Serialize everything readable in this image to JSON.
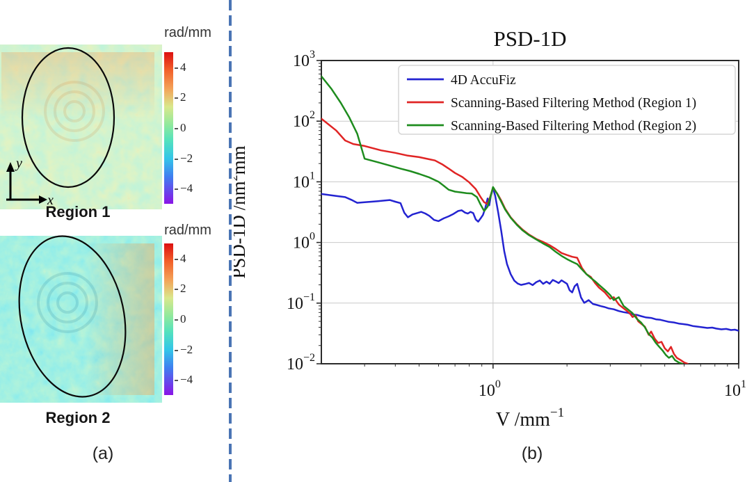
{
  "panel_a": {
    "caption": "(a)",
    "colorbar": {
      "label": "rad/mm",
      "ticks": [
        "4",
        "2",
        "0",
        "−2",
        "−4"
      ],
      "range": [
        -5,
        5
      ],
      "gradient": [
        [
          "0%",
          "#dc1010"
        ],
        [
          "12%",
          "#f2612a"
        ],
        [
          "24%",
          "#f3a258"
        ],
        [
          "36%",
          "#d9e88c"
        ],
        [
          "48%",
          "#8fe99d"
        ],
        [
          "58%",
          "#55e2bc"
        ],
        [
          "70%",
          "#33c6e8"
        ],
        [
          "82%",
          "#3f7ff0"
        ],
        [
          "100%",
          "#8a15e6"
        ]
      ]
    },
    "regions": [
      {
        "label": "Region 1",
        "axis_x": "x",
        "axis_y": "y",
        "palette": [
          "#6adcc8",
          "#9ce4a0",
          "#f0955a"
        ]
      },
      {
        "label": "Region 2",
        "palette": [
          "#3ecfe0",
          "#55e2c5",
          "#9ce9a0"
        ]
      }
    ]
  },
  "panel_b": {
    "caption": "(b)"
  },
  "colors": {
    "line_blue": "#2323d1",
    "line_red": "#e02424",
    "line_green": "#1e8c1e",
    "axis": "#2b2b2b",
    "grid": "#c9c9c9",
    "text": "#111111",
    "divider_blue": "#4a74b4",
    "legend_border": "#d6d6d6"
  },
  "chart_data": {
    "type": "line",
    "title": "PSD-1D",
    "xlabel": {
      "base": "V /mm",
      "sup": "−1"
    },
    "ylabel": {
      "base": "PSD-1D /nm",
      "sup": "2",
      "suffix": "mm"
    },
    "x_scale": "log",
    "y_scale": "log",
    "x_range": [
      0.2,
      10
    ],
    "y_range": [
      0.01,
      1000
    ],
    "x_tick_exponents": [
      0,
      1
    ],
    "y_tick_exponents": [
      3,
      2,
      1,
      0,
      -1,
      -2
    ],
    "grid": true,
    "legend_position": "upper center",
    "series": [
      {
        "name": "4D AccuFiz",
        "color": "#2323d1",
        "points": [
          [
            0.2,
            6.3
          ],
          [
            0.215,
            6.05
          ],
          [
            0.23,
            5.85
          ],
          [
            0.25,
            5.6
          ],
          [
            0.265,
            5.05
          ],
          [
            0.28,
            4.5
          ],
          [
            0.3,
            4.6
          ],
          [
            0.32,
            4.7
          ],
          [
            0.34,
            4.8
          ],
          [
            0.36,
            4.9
          ],
          [
            0.38,
            5.0
          ],
          [
            0.4,
            4.7
          ],
          [
            0.42,
            4.45
          ],
          [
            0.435,
            3.1
          ],
          [
            0.45,
            2.6
          ],
          [
            0.47,
            2.9
          ],
          [
            0.49,
            3.05
          ],
          [
            0.51,
            3.2
          ],
          [
            0.53,
            3.0
          ],
          [
            0.55,
            2.75
          ],
          [
            0.575,
            2.35
          ],
          [
            0.6,
            2.25
          ],
          [
            0.63,
            2.5
          ],
          [
            0.66,
            2.7
          ],
          [
            0.69,
            2.95
          ],
          [
            0.72,
            3.3
          ],
          [
            0.745,
            3.4
          ],
          [
            0.77,
            3.1
          ],
          [
            0.79,
            3.0
          ],
          [
            0.81,
            3.2
          ],
          [
            0.83,
            3.05
          ],
          [
            0.85,
            2.4
          ],
          [
            0.87,
            2.2
          ],
          [
            0.89,
            2.5
          ],
          [
            0.91,
            2.85
          ],
          [
            0.93,
            3.7
          ],
          [
            0.95,
            5.3
          ],
          [
            0.965,
            4.1
          ],
          [
            0.98,
            5.9
          ],
          [
            1.0,
            8.0
          ],
          [
            1.02,
            5.9
          ],
          [
            1.05,
            3.1
          ],
          [
            1.08,
            1.55
          ],
          [
            1.11,
            0.72
          ],
          [
            1.14,
            0.44
          ],
          [
            1.18,
            0.3
          ],
          [
            1.22,
            0.235
          ],
          [
            1.26,
            0.21
          ],
          [
            1.3,
            0.2
          ],
          [
            1.35,
            0.206
          ],
          [
            1.4,
            0.215
          ],
          [
            1.45,
            0.198
          ],
          [
            1.5,
            0.222
          ],
          [
            1.55,
            0.236
          ],
          [
            1.6,
            0.208
          ],
          [
            1.65,
            0.226
          ],
          [
            1.7,
            0.209
          ],
          [
            1.75,
            0.241
          ],
          [
            1.8,
            0.228
          ],
          [
            1.85,
            0.214
          ],
          [
            1.9,
            0.238
          ],
          [
            1.95,
            0.222
          ],
          [
            2.0,
            0.208
          ],
          [
            2.05,
            0.163
          ],
          [
            2.1,
            0.15
          ],
          [
            2.15,
            0.19
          ],
          [
            2.2,
            0.208
          ],
          [
            2.28,
            0.124
          ],
          [
            2.35,
            0.101
          ],
          [
            2.45,
            0.112
          ],
          [
            2.55,
            0.097
          ],
          [
            2.65,
            0.093
          ],
          [
            2.75,
            0.089
          ],
          [
            2.85,
            0.086
          ],
          [
            2.95,
            0.082
          ],
          [
            3.1,
            0.079
          ],
          [
            3.25,
            0.074
          ],
          [
            3.4,
            0.071
          ],
          [
            3.55,
            0.069
          ],
          [
            3.7,
            0.065
          ],
          [
            3.85,
            0.064
          ],
          [
            4.0,
            0.061
          ],
          [
            4.2,
            0.058
          ],
          [
            4.4,
            0.057
          ],
          [
            4.6,
            0.054
          ],
          [
            4.8,
            0.053
          ],
          [
            5.0,
            0.051
          ],
          [
            5.2,
            0.049
          ],
          [
            5.45,
            0.048
          ],
          [
            5.7,
            0.046
          ],
          [
            5.95,
            0.045
          ],
          [
            6.2,
            0.044
          ],
          [
            6.5,
            0.042
          ],
          [
            6.8,
            0.041
          ],
          [
            7.1,
            0.04
          ],
          [
            7.45,
            0.039
          ],
          [
            7.8,
            0.0395
          ],
          [
            8.1,
            0.038
          ],
          [
            8.5,
            0.037
          ],
          [
            8.9,
            0.0375
          ],
          [
            9.3,
            0.036
          ],
          [
            9.65,
            0.0365
          ],
          [
            10.0,
            0.035
          ]
        ]
      },
      {
        "name": "Scanning-Based Filtering Method (Region 1)",
        "color": "#e02424",
        "points": [
          [
            0.2,
            110
          ],
          [
            0.23,
            70
          ],
          [
            0.25,
            48
          ],
          [
            0.27,
            42
          ],
          [
            0.3,
            39
          ],
          [
            0.35,
            33
          ],
          [
            0.4,
            30
          ],
          [
            0.45,
            27
          ],
          [
            0.5,
            25.5
          ],
          [
            0.55,
            23.5
          ],
          [
            0.58,
            22.5
          ],
          [
            0.62,
            19.5
          ],
          [
            0.66,
            16.5
          ],
          [
            0.7,
            14
          ],
          [
            0.75,
            12
          ],
          [
            0.8,
            9.8
          ],
          [
            0.85,
            7.6
          ],
          [
            0.89,
            5.6
          ],
          [
            0.92,
            4.6
          ],
          [
            0.95,
            4.3
          ],
          [
            0.975,
            5.8
          ],
          [
            1.0,
            8.0
          ],
          [
            1.04,
            6.4
          ],
          [
            1.08,
            4.9
          ],
          [
            1.12,
            3.6
          ],
          [
            1.18,
            2.6
          ],
          [
            1.25,
            2.0
          ],
          [
            1.32,
            1.62
          ],
          [
            1.4,
            1.35
          ],
          [
            1.5,
            1.14
          ],
          [
            1.6,
            1.02
          ],
          [
            1.7,
            0.9
          ],
          [
            1.8,
            0.78
          ],
          [
            1.9,
            0.67
          ],
          [
            2.0,
            0.62
          ],
          [
            2.1,
            0.58
          ],
          [
            2.2,
            0.56
          ],
          [
            2.3,
            0.38
          ],
          [
            2.4,
            0.3
          ],
          [
            2.5,
            0.27
          ],
          [
            2.6,
            0.215
          ],
          [
            2.7,
            0.18
          ],
          [
            2.85,
            0.15
          ],
          [
            3.0,
            0.118
          ],
          [
            3.1,
            0.125
          ],
          [
            3.25,
            0.095
          ],
          [
            3.4,
            0.082
          ],
          [
            3.5,
            0.075
          ],
          [
            3.6,
            0.068
          ],
          [
            3.7,
            0.059
          ],
          [
            3.8,
            0.063
          ],
          [
            3.9,
            0.05
          ],
          [
            4.0,
            0.046
          ],
          [
            4.15,
            0.041
          ],
          [
            4.3,
            0.03
          ],
          [
            4.4,
            0.034
          ],
          [
            4.55,
            0.026
          ],
          [
            4.7,
            0.022
          ],
          [
            4.85,
            0.023
          ],
          [
            5.0,
            0.018
          ],
          [
            5.15,
            0.016
          ],
          [
            5.3,
            0.019
          ],
          [
            5.45,
            0.0145
          ],
          [
            5.6,
            0.0125
          ],
          [
            5.8,
            0.0115
          ],
          [
            6.0,
            0.0105
          ],
          [
            6.2,
            0.01
          ]
        ]
      },
      {
        "name": "Scanning-Based Filtering Method (Region 2)",
        "color": "#1e8c1e",
        "points": [
          [
            0.2,
            550
          ],
          [
            0.22,
            340
          ],
          [
            0.24,
            200
          ],
          [
            0.26,
            115
          ],
          [
            0.28,
            62
          ],
          [
            0.3,
            24
          ],
          [
            0.34,
            21
          ],
          [
            0.38,
            18.5
          ],
          [
            0.42,
            16.5
          ],
          [
            0.46,
            15
          ],
          [
            0.5,
            13.5
          ],
          [
            0.55,
            11.8
          ],
          [
            0.6,
            10
          ],
          [
            0.63,
            8.6
          ],
          [
            0.66,
            7.4
          ],
          [
            0.7,
            6.9
          ],
          [
            0.74,
            6.7
          ],
          [
            0.78,
            6.5
          ],
          [
            0.82,
            6.4
          ],
          [
            0.86,
            5.6
          ],
          [
            0.89,
            4.2
          ],
          [
            0.92,
            3.3
          ],
          [
            0.95,
            3.9
          ],
          [
            0.975,
            5.6
          ],
          [
            1.0,
            8.2
          ],
          [
            1.04,
            6.3
          ],
          [
            1.08,
            4.7
          ],
          [
            1.12,
            3.5
          ],
          [
            1.18,
            2.55
          ],
          [
            1.25,
            1.95
          ],
          [
            1.32,
            1.58
          ],
          [
            1.4,
            1.32
          ],
          [
            1.5,
            1.12
          ],
          [
            1.6,
            0.96
          ],
          [
            1.7,
            0.84
          ],
          [
            1.8,
            0.7
          ],
          [
            1.9,
            0.6
          ],
          [
            2.0,
            0.53
          ],
          [
            2.1,
            0.48
          ],
          [
            2.2,
            0.44
          ],
          [
            2.3,
            0.36
          ],
          [
            2.4,
            0.3
          ],
          [
            2.5,
            0.26
          ],
          [
            2.6,
            0.23
          ],
          [
            2.7,
            0.2
          ],
          [
            2.85,
            0.165
          ],
          [
            3.0,
            0.135
          ],
          [
            3.1,
            0.112
          ],
          [
            3.25,
            0.125
          ],
          [
            3.4,
            0.09
          ],
          [
            3.55,
            0.078
          ],
          [
            3.7,
            0.068
          ],
          [
            3.85,
            0.055
          ],
          [
            4.0,
            0.048
          ],
          [
            4.15,
            0.04
          ],
          [
            4.3,
            0.031
          ],
          [
            4.45,
            0.027
          ],
          [
            4.6,
            0.022
          ],
          [
            4.75,
            0.019
          ],
          [
            4.9,
            0.0165
          ],
          [
            5.05,
            0.014
          ],
          [
            5.2,
            0.0125
          ],
          [
            5.35,
            0.0135
          ],
          [
            5.5,
            0.0115
          ],
          [
            5.7,
            0.0105
          ],
          [
            5.9,
            0.01
          ]
        ]
      }
    ]
  }
}
